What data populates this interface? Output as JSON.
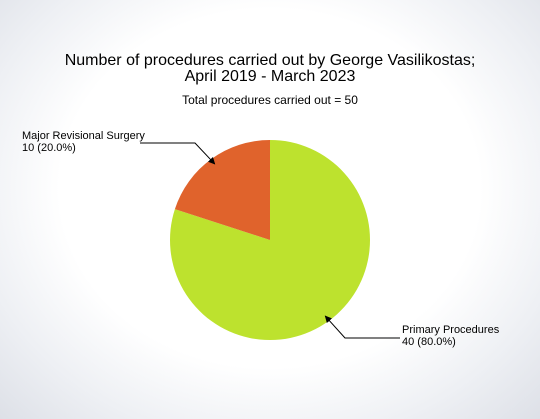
{
  "chart_data": {
    "type": "pie",
    "title_lines": [
      "Number of procedures carried out by George Vasilikostas;",
      "April 2019 - March 2023"
    ],
    "subtitle": "Total procedures carried out = 50",
    "slices": [
      {
        "name": "Primary Procedures",
        "value": 40,
        "value_label": "40 (80.0%)",
        "color": "#bde22e"
      },
      {
        "name": "Major Revisional Surgery",
        "value": 10,
        "value_label": "10 (20.0%)",
        "color": "#e0632c"
      }
    ],
    "start_angle_deg": 0,
    "direction": "clockwise"
  }
}
